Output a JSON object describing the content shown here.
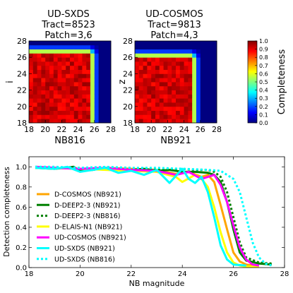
{
  "chart_data": [
    {
      "type": "heatmap",
      "title": [
        "UD-SXDS",
        "Tract=8523",
        "Patch=3,6"
      ],
      "xlabel": "NB816",
      "ylabel": "i",
      "xlim": [
        18,
        28
      ],
      "ylim": [
        18,
        28
      ],
      "xticks": [
        "18",
        "20",
        "22",
        "24",
        "26",
        "28"
      ],
      "yticks": [
        "18",
        "20",
        "22",
        "24",
        "26",
        "28"
      ],
      "bin_size": 0.5,
      "x_turnover": 26.0,
      "y_turnover": 27.0
    },
    {
      "type": "heatmap",
      "title": [
        "UD-COSMOS",
        "Tract=9813",
        "Patch=4,3"
      ],
      "xlabel": "NB921",
      "ylabel": "z",
      "xlim": [
        18,
        28
      ],
      "ylim": [
        18,
        28
      ],
      "xticks": [
        "18",
        "20",
        "22",
        "24",
        "26",
        "28"
      ],
      "yticks": [
        "18",
        "20",
        "22",
        "24",
        "26",
        "28"
      ],
      "bin_size": 0.5,
      "x_turnover": 25.5,
      "y_turnover": 26.5
    },
    {
      "type": "colorbar",
      "label": "Completeness",
      "range": [
        0.0,
        1.0
      ],
      "ticks": [
        "0.0",
        "0.1",
        "0.2",
        "0.3",
        "0.4",
        "0.5",
        "0.6",
        "0.7",
        "0.8",
        "0.9",
        "1.0"
      ]
    },
    {
      "type": "line",
      "xlabel": "NB magnitude",
      "ylabel": "Detection completeness",
      "xlim": [
        18,
        28
      ],
      "ylim": [
        0,
        1.1
      ],
      "xticks": [
        "18",
        "20",
        "22",
        "24",
        "26",
        "28"
      ],
      "yticks": [
        "0.0",
        "0.2",
        "0.4",
        "0.6",
        "0.8",
        "1.0"
      ],
      "legend_position": "lower-left",
      "series": [
        {
          "name": "D-COSMOS (NB921)",
          "color": "#ffa500",
          "dash": "solid",
          "x": [
            18.25,
            19.0,
            20.0,
            21.0,
            22.0,
            23.0,
            23.75,
            24.25,
            24.75,
            25.0,
            25.25,
            25.5,
            25.75,
            26.0,
            26.25,
            26.5,
            26.75,
            27.0
          ],
          "y": [
            1.0,
            0.99,
            0.98,
            0.99,
            0.98,
            0.97,
            0.93,
            0.95,
            0.9,
            0.92,
            0.85,
            0.62,
            0.38,
            0.15,
            0.06,
            0.03,
            0.02,
            0.02
          ]
        },
        {
          "name": "D-DEEP2-3 (NB921)",
          "color": "#008000",
          "dash": "solid",
          "x": [
            18.25,
            19.0,
            19.75,
            20.0,
            20.5,
            21.0,
            22.0,
            22.5,
            23.0,
            23.5,
            24.0,
            24.5,
            25.0,
            25.25,
            25.5,
            25.75,
            26.0,
            26.25,
            26.5,
            27.0,
            27.5
          ],
          "y": [
            0.99,
            0.98,
            1.0,
            0.96,
            0.97,
            0.99,
            0.97,
            0.98,
            0.96,
            0.97,
            0.95,
            0.95,
            0.94,
            0.92,
            0.85,
            0.65,
            0.38,
            0.15,
            0.07,
            0.04,
            0.03
          ]
        },
        {
          "name": "D-DEEP2-3 (NB816)",
          "color": "#008000",
          "dash": "dotted",
          "x": [
            18.25,
            19.0,
            20.0,
            21.0,
            22.0,
            23.0,
            24.0,
            24.5,
            25.0,
            25.25,
            25.5,
            25.75,
            26.0,
            26.25,
            26.5,
            27.0,
            27.5
          ],
          "y": [
            0.99,
            0.99,
            0.98,
            0.99,
            0.98,
            0.97,
            0.98,
            0.97,
            0.97,
            0.95,
            0.9,
            0.75,
            0.5,
            0.25,
            0.1,
            0.05,
            0.04
          ]
        },
        {
          "name": "D-ELAIS-N1 (NB921)",
          "color": "#ffff00",
          "dash": "solid",
          "x": [
            18.25,
            19.0,
            20.0,
            21.0,
            22.0,
            23.0,
            23.75,
            24.0,
            24.5,
            24.75,
            25.0,
            25.25,
            25.5,
            25.75,
            26.0,
            26.25,
            26.5,
            27.0
          ],
          "y": [
            0.99,
            0.99,
            0.98,
            0.97,
            0.96,
            0.95,
            0.9,
            0.85,
            0.92,
            0.88,
            0.8,
            0.6,
            0.35,
            0.15,
            0.05,
            0.02,
            0.01,
            0.01
          ]
        },
        {
          "name": "UD-COSMOS (NB921)",
          "color": "#ff00ff",
          "dash": "solid",
          "x": [
            18.25,
            19.0,
            20.0,
            21.0,
            22.0,
            23.0,
            23.75,
            24.25,
            24.75,
            25.25,
            25.5,
            25.75,
            26.0,
            26.25,
            26.5,
            26.75,
            27.0
          ],
          "y": [
            1.0,
            0.99,
            0.98,
            0.99,
            0.97,
            0.96,
            0.92,
            0.95,
            0.88,
            0.92,
            0.82,
            0.65,
            0.42,
            0.2,
            0.08,
            0.03,
            0.02
          ]
        },
        {
          "name": "UD-SXDS (NB921)",
          "color": "#00ffff",
          "dash": "solid",
          "x": [
            18.25,
            19.0,
            19.5,
            20.0,
            20.5,
            21.0,
            21.5,
            22.0,
            22.5,
            23.0,
            23.5,
            24.0,
            24.25,
            24.5,
            24.75,
            25.0,
            25.25,
            25.5,
            25.75,
            26.0,
            26.5
          ],
          "y": [
            0.99,
            0.98,
            1.0,
            0.95,
            0.97,
            0.99,
            0.94,
            0.96,
            0.92,
            0.97,
            0.84,
            0.98,
            0.88,
            0.84,
            0.9,
            0.75,
            0.5,
            0.22,
            0.08,
            0.03,
            0.02
          ]
        },
        {
          "name": "UD-SXDS (NB816)",
          "color": "#00ffff",
          "dash": "dotted",
          "x": [
            18.25,
            19.0,
            20.0,
            21.0,
            22.0,
            23.0,
            24.0,
            25.0,
            25.5,
            26.0,
            26.25,
            26.5,
            26.75,
            27.0,
            27.25,
            27.5
          ],
          "y": [
            1.0,
            1.0,
            0.99,
            1.0,
            0.99,
            0.99,
            0.98,
            0.97,
            0.96,
            0.88,
            0.75,
            0.5,
            0.25,
            0.1,
            0.04,
            0.02
          ]
        }
      ]
    }
  ]
}
